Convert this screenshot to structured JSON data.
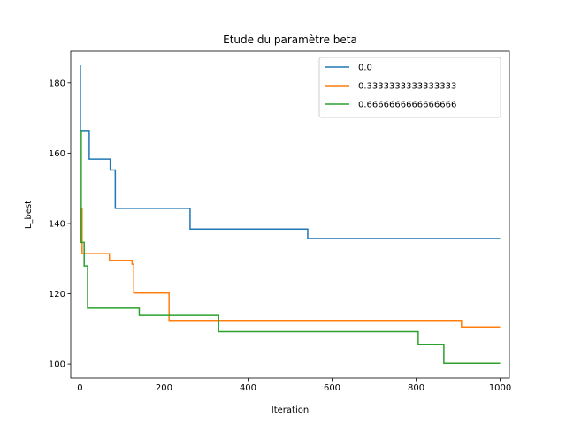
{
  "chart_data": {
    "type": "line",
    "title": "Etude du paramètre beta",
    "xlabel": "Iteration",
    "ylabel": "L_best",
    "xlim": [
      -22,
      1022
    ],
    "ylim": [
      96,
      189
    ],
    "xticks": [
      0,
      200,
      400,
      600,
      800,
      1000
    ],
    "yticks": [
      100,
      120,
      140,
      160,
      180
    ],
    "grid": false,
    "legend_position": "top-right",
    "series": [
      {
        "name": "0.0",
        "color": "#1f77b4",
        "step": "post",
        "points": [
          [
            0,
            184.8
          ],
          [
            1,
            166.4
          ],
          [
            22,
            158.3
          ],
          [
            72,
            155.2
          ],
          [
            84,
            144.3
          ],
          [
            262,
            138.4
          ],
          [
            542,
            135.7
          ],
          [
            1000,
            135.7
          ]
        ]
      },
      {
        "name": "0.3333333333333333",
        "color": "#ff7f0e",
        "step": "post",
        "points": [
          [
            0,
            134.6
          ],
          [
            2,
            144.1
          ],
          [
            5,
            131.4
          ],
          [
            70,
            129.5
          ],
          [
            124,
            128.4
          ],
          [
            128,
            120.2
          ],
          [
            212,
            112.4
          ],
          [
            908,
            110.5
          ],
          [
            1000,
            110.5
          ]
        ]
      },
      {
        "name": "0.6666666666666666",
        "color": "#2ca02c",
        "step": "post",
        "points": [
          [
            0,
            166.4
          ],
          [
            3,
            134.6
          ],
          [
            10,
            127.9
          ],
          [
            18,
            115.9
          ],
          [
            141,
            113.8
          ],
          [
            330,
            109.2
          ],
          [
            805,
            105.6
          ],
          [
            866,
            100.2
          ],
          [
            1000,
            100.2
          ]
        ]
      }
    ]
  }
}
